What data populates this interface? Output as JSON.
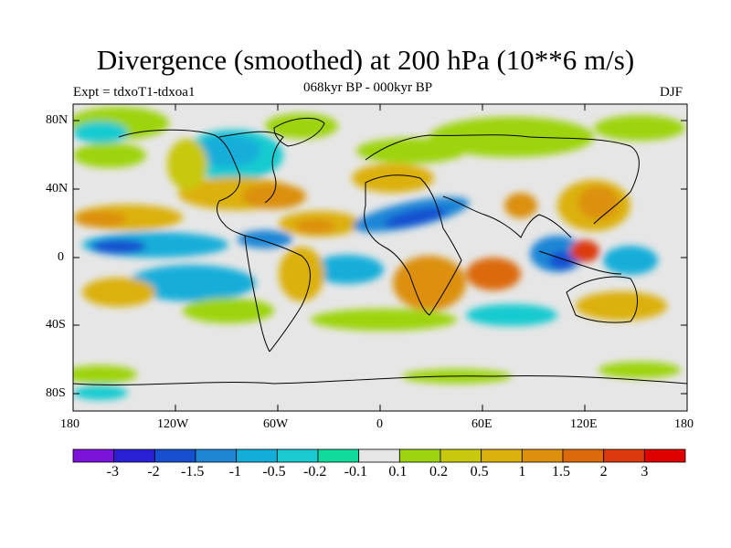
{
  "title": "Divergence (smoothed) at 200 hPa (10**6 m/s)",
  "expt_label": "Expt = tdxoT1-tdxoa1",
  "subtitle": "068kyr BP - 000kyr BP",
  "season": "DJF",
  "lat_labels": [
    "80N",
    "40N",
    "0",
    "40S",
    "80S"
  ],
  "lon_labels": [
    "180",
    "120W",
    "60W",
    "0",
    "60E",
    "120E",
    "180"
  ],
  "colorbar": {
    "colors": [
      "#7b13d8",
      "#2a1fd6",
      "#1650d0",
      "#1f86d6",
      "#12aed9",
      "#19cbd0",
      "#10da9c",
      "#e6e6e6",
      "#9ed40e",
      "#c8c80c",
      "#dcb10d",
      "#dc900b",
      "#dc6a0c",
      "#dc3a0e",
      "#e00000"
    ],
    "labels": [
      "-3",
      "-2",
      "-1.5",
      "-1",
      "-0.5",
      "-0.2",
      "-0.1",
      "0.1",
      "0.2",
      "0.5",
      "1",
      "1.5",
      "2",
      "3"
    ]
  },
  "palette": {
    "neutral": "#e6e6e6",
    "green": "#9ed40e",
    "yellow": "#c8c80c",
    "orange": "#dcb10d",
    "dark_orange": "#dc900b",
    "red_orange": "#dc6a0c",
    "red": "#dc3a0e",
    "teal": "#10da9c",
    "cyan": "#19cbd0",
    "light_blue": "#12aed9",
    "blue": "#1f86d6",
    "dark_blue": "#1650d0"
  }
}
